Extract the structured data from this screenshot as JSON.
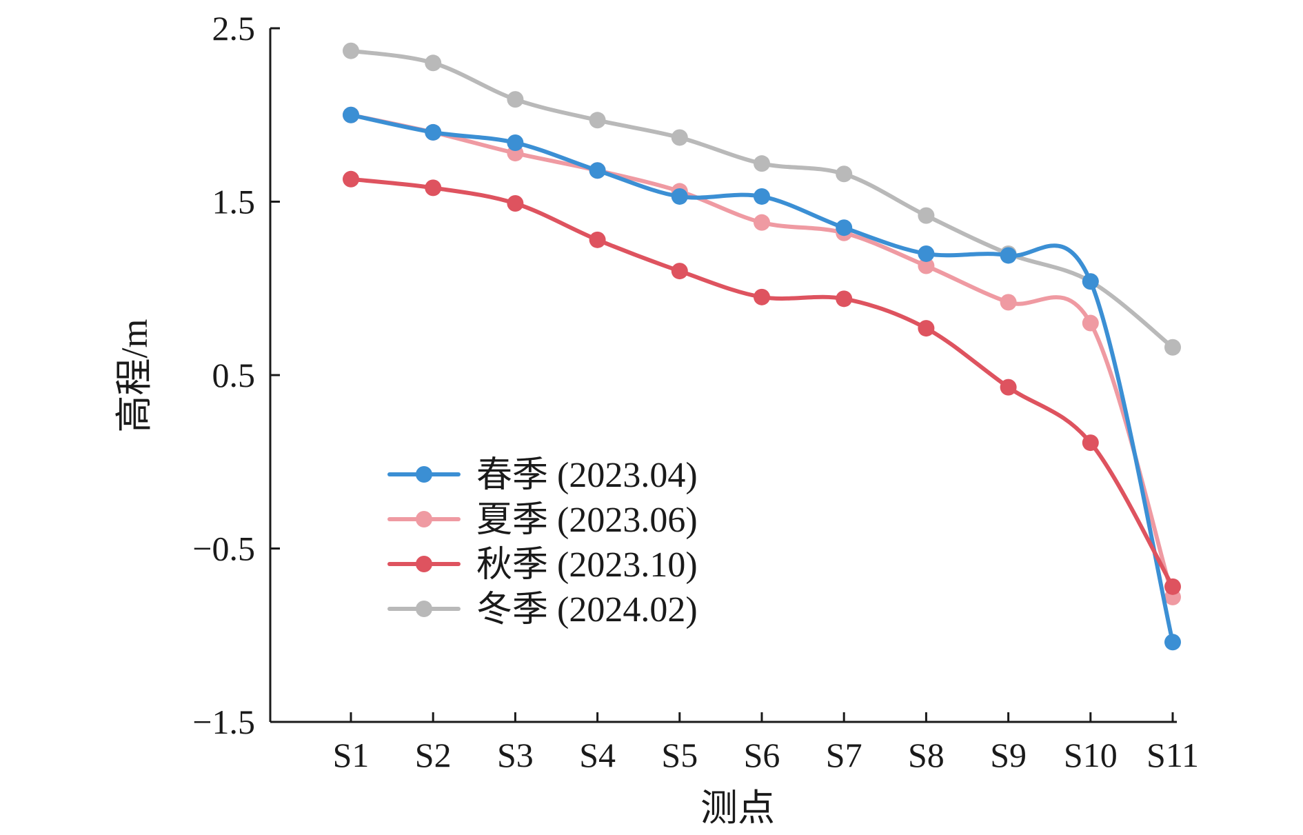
{
  "chart_data": {
    "type": "line",
    "xlabel": "测点",
    "ylabel": "高程/m",
    "categories": [
      "S1",
      "S2",
      "S3",
      "S4",
      "S5",
      "S6",
      "S7",
      "S8",
      "S9",
      "S10",
      "S11"
    ],
    "ylim": [
      -1.5,
      2.5
    ],
    "yticks": [
      2.5,
      1.5,
      0.5,
      -0.5,
      -1.5
    ],
    "ytick_labels": [
      "2.5",
      "1.5",
      "0.5",
      "−0.5",
      "−1.5"
    ],
    "grid": false,
    "legend_position": "lower-left",
    "series": [
      {
        "name": "春季 (2023.04)",
        "color": "#3b8fd4",
        "values": [
          2.0,
          1.9,
          1.84,
          1.68,
          1.53,
          1.53,
          1.35,
          1.2,
          1.19,
          1.04,
          -1.04
        ]
      },
      {
        "name": "夏季 (2023.06)",
        "color": "#ef9aa2",
        "values": [
          2.0,
          1.9,
          1.78,
          1.68,
          1.56,
          1.38,
          1.32,
          1.13,
          0.92,
          0.8,
          -0.78
        ]
      },
      {
        "name": "秋季 (2023.10)",
        "color": "#de535f",
        "values": [
          1.63,
          1.58,
          1.49,
          1.28,
          1.1,
          0.95,
          0.94,
          0.77,
          0.43,
          0.11,
          -0.72
        ]
      },
      {
        "name": "冬季 (2024.02)",
        "color": "#b9b9b9",
        "values": [
          2.37,
          2.3,
          2.09,
          1.97,
          1.87,
          1.72,
          1.66,
          1.42,
          1.2,
          1.04,
          0.66
        ]
      }
    ]
  }
}
